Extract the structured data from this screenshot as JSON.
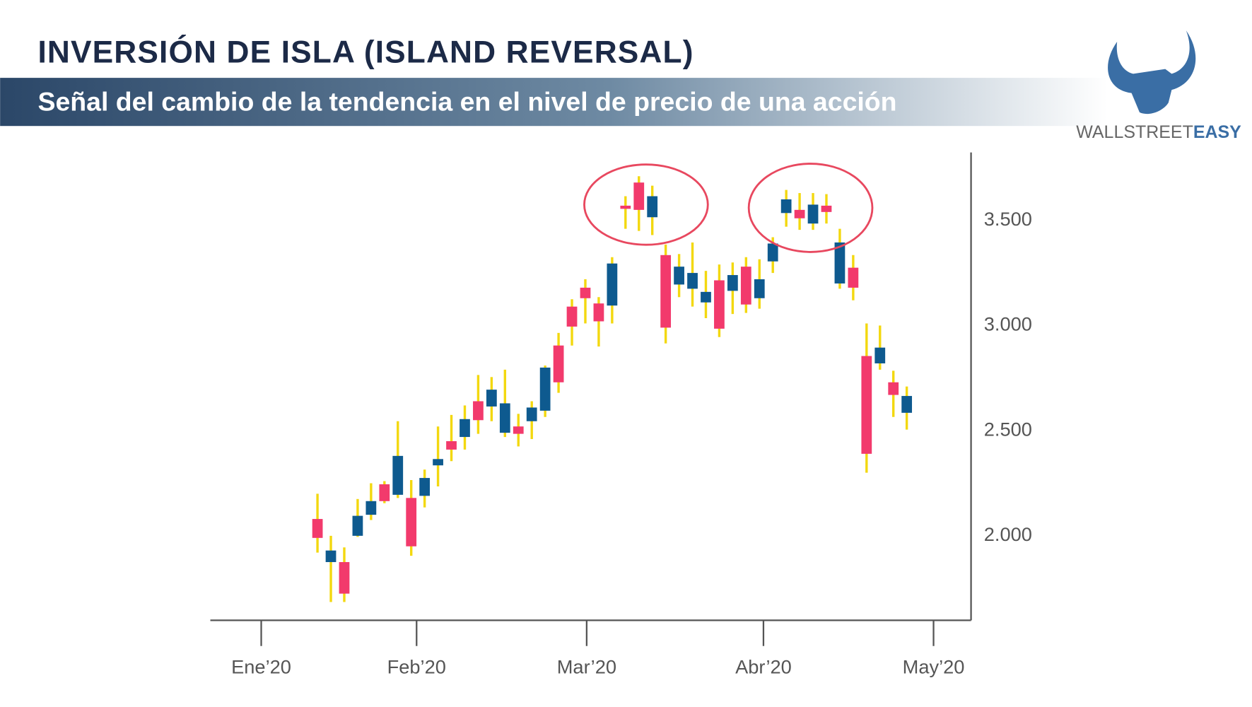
{
  "chart_data": {
    "type": "candlestick",
    "title": "INVERSIÓN DE ISLA (ISLAND REVERSAL)",
    "subtitle": "Señal del cambio de la tendencia en el nivel de precio de una acción",
    "x": [
      0,
      1,
      2,
      3,
      4,
      5,
      6,
      7,
      8,
      9,
      10,
      11,
      12,
      13,
      14,
      15,
      16,
      17,
      18,
      19,
      20,
      21,
      22,
      23,
      24,
      25,
      26,
      27,
      28,
      29,
      30,
      31,
      32,
      33,
      34,
      35,
      36,
      37,
      38,
      39,
      40,
      41,
      42,
      43,
      44
    ],
    "open": [
      2070,
      1865,
      1865,
      1990,
      2090,
      2235,
      2185,
      2170,
      2180,
      2325,
      2440,
      2460,
      2630,
      2605,
      2480,
      2510,
      2535,
      2585,
      2895,
      3080,
      3170,
      3095,
      3085,
      3560,
      3670,
      3505,
      3325,
      3185,
      3165,
      3100,
      3205,
      3155,
      3270,
      3120,
      3295,
      3525,
      3540,
      3475,
      3560,
      3190,
      3265,
      2845,
      2810,
      2720,
      2575
    ],
    "high": [
      2190,
      1990,
      1935,
      2165,
      2240,
      2250,
      2535,
      2255,
      2305,
      2510,
      2565,
      2610,
      2755,
      2745,
      2780,
      2570,
      2630,
      2800,
      2955,
      3115,
      3210,
      3125,
      3315,
      3605,
      3700,
      3655,
      3375,
      3330,
      3385,
      3250,
      3280,
      3290,
      3315,
      3305,
      3410,
      3635,
      3620,
      3620,
      3615,
      3450,
      3325,
      3000,
      2990,
      2775,
      2700
    ],
    "low": [
      1910,
      1675,
      1675,
      1985,
      2065,
      2145,
      2170,
      1895,
      2125,
      2225,
      2345,
      2400,
      2475,
      2535,
      2460,
      2415,
      2450,
      2555,
      2670,
      2895,
      3000,
      2890,
      3000,
      3450,
      3440,
      3420,
      2905,
      3125,
      3080,
      3025,
      2935,
      3045,
      3050,
      3070,
      3240,
      3460,
      3445,
      3445,
      3475,
      3165,
      3110,
      2290,
      2780,
      2555,
      2495
    ],
    "close": [
      1980,
      1920,
      1715,
      2085,
      2155,
      2155,
      2370,
      1940,
      2265,
      2355,
      2400,
      2545,
      2540,
      2685,
      2620,
      2475,
      2600,
      2790,
      2720,
      2985,
      3120,
      3010,
      3285,
      3545,
      3540,
      3605,
      2980,
      3270,
      3240,
      3150,
      2975,
      3230,
      3090,
      3210,
      3380,
      3590,
      3500,
      3565,
      3530,
      3385,
      3170,
      2380,
      2885,
      2660,
      2655
    ],
    "up_color": "#0e5a8f",
    "down_color": "#f23a6c",
    "wick_color": "#f3d80f",
    "ylim": [
      1588,
      3813
    ],
    "yticks": [
      {
        "value": 2000,
        "label": "2.000"
      },
      {
        "value": 2500,
        "label": "2.500"
      },
      {
        "value": 3000,
        "label": "3.000"
      },
      {
        "value": 3500,
        "label": "3.500"
      }
    ],
    "y_axis_side": "right",
    "xlim": [
      -8,
      48.8
    ],
    "xticks": [
      {
        "value": -4.2,
        "label": "Ene’20"
      },
      {
        "value": 7.4,
        "label": "Feb’20"
      },
      {
        "value": 20.1,
        "label": "Mar’20"
      },
      {
        "value": 33.3,
        "label": "Abr’20"
      },
      {
        "value": 46,
        "label": "May’20"
      }
    ]
  },
  "brand": {
    "name_1": "WALLSTREET",
    "name_2": "EASY"
  }
}
